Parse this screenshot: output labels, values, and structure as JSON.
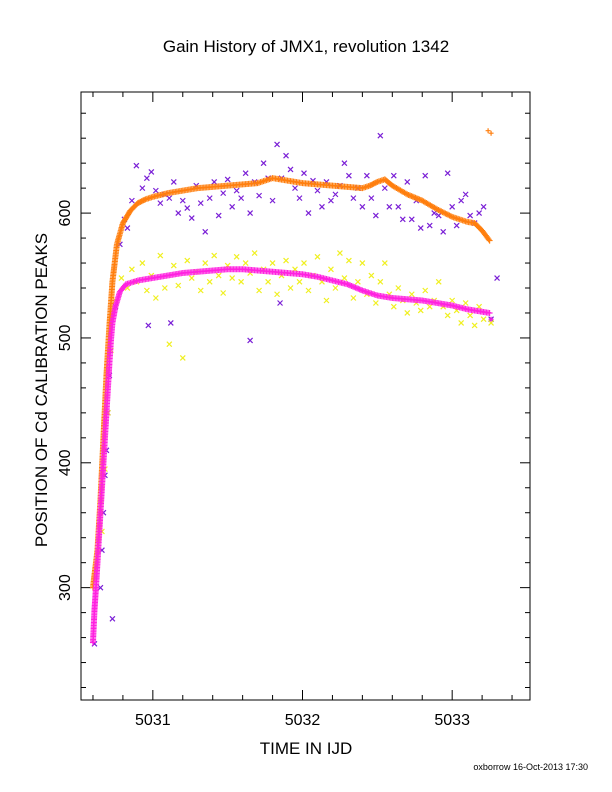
{
  "chart_data": {
    "type": "scatter",
    "title": "Gain History of JMX1, revolution 1342",
    "xlabel": "TIME IN IJD",
    "ylabel": "POSITION OF Cd CALIBRATION PEAKS",
    "footer": "oxborrow 16-Oct-2013 17:30",
    "xlim": [
      5030.52,
      5033.52
    ],
    "ylim": [
      210,
      697
    ],
    "xticks": [
      5031,
      5032,
      5033
    ],
    "xtick_labels": [
      "5031",
      "5032",
      "5033"
    ],
    "yticks": [
      300,
      400,
      500,
      600
    ],
    "ytick_labels": [
      "300",
      "400",
      "500",
      "600"
    ],
    "grid": false,
    "legend": "none",
    "series": [
      {
        "marker": "x",
        "color": "#7a1fd6",
        "points": [
          [
            5030.61,
            255
          ],
          [
            5030.65,
            300
          ],
          [
            5030.66,
            330
          ],
          [
            5030.67,
            360
          ],
          [
            5030.68,
            390
          ],
          [
            5030.69,
            410
          ],
          [
            5030.7,
            440
          ],
          [
            5030.71,
            470
          ],
          [
            5030.73,
            275
          ],
          [
            5030.75,
            525
          ],
          [
            5030.78,
            575
          ],
          [
            5030.81,
            595
          ],
          [
            5030.83,
            588
          ],
          [
            5030.86,
            610
          ],
          [
            5030.89,
            638
          ],
          [
            5030.93,
            620
          ],
          [
            5030.96,
            628
          ],
          [
            5030.99,
            633
          ],
          [
            5031.02,
            618
          ],
          [
            5031.05,
            608
          ],
          [
            5031.08,
            615
          ],
          [
            5031.11,
            612
          ],
          [
            5031.14,
            625
          ],
          [
            5031.17,
            600
          ],
          [
            5031.2,
            610
          ],
          [
            5031.23,
            604
          ],
          [
            5031.26,
            596
          ],
          [
            5031.29,
            622
          ],
          [
            5031.32,
            608
          ],
          [
            5031.35,
            585
          ],
          [
            5031.38,
            612
          ],
          [
            5031.41,
            625
          ],
          [
            5031.44,
            598
          ],
          [
            5031.47,
            616
          ],
          [
            5031.5,
            627
          ],
          [
            5031.53,
            605
          ],
          [
            5031.56,
            618
          ],
          [
            5031.59,
            612
          ],
          [
            5031.62,
            632
          ],
          [
            5031.65,
            600
          ],
          [
            5031.68,
            625
          ],
          [
            5031.71,
            614
          ],
          [
            5031.74,
            640
          ],
          [
            5031.77,
            628
          ],
          [
            5031.8,
            610
          ],
          [
            5031.83,
            655
          ],
          [
            5031.86,
            628
          ],
          [
            5031.89,
            646
          ],
          [
            5031.92,
            635
          ],
          [
            5031.95,
            620
          ],
          [
            5031.98,
            612
          ],
          [
            5032.01,
            632
          ],
          [
            5032.04,
            600
          ],
          [
            5032.07,
            626
          ],
          [
            5032.1,
            618
          ],
          [
            5032.13,
            605
          ],
          [
            5032.16,
            625
          ],
          [
            5032.19,
            610
          ],
          [
            5032.22,
            615
          ],
          [
            5032.25,
            622
          ],
          [
            5032.28,
            640
          ],
          [
            5032.31,
            630
          ],
          [
            5032.34,
            612
          ],
          [
            5032.37,
            620
          ],
          [
            5032.4,
            605
          ],
          [
            5032.43,
            630
          ],
          [
            5032.46,
            612
          ],
          [
            5032.49,
            598
          ],
          [
            5032.52,
            662
          ],
          [
            5032.55,
            620
          ],
          [
            5032.58,
            605
          ],
          [
            5032.61,
            630
          ],
          [
            5032.64,
            605
          ],
          [
            5032.67,
            595
          ],
          [
            5032.7,
            625
          ],
          [
            5032.73,
            595
          ],
          [
            5032.76,
            610
          ],
          [
            5032.79,
            588
          ],
          [
            5032.82,
            630
          ],
          [
            5032.85,
            590
          ],
          [
            5032.88,
            600
          ],
          [
            5032.91,
            598
          ],
          [
            5032.94,
            585
          ],
          [
            5032.97,
            632
          ],
          [
            5033.0,
            605
          ],
          [
            5033.03,
            590
          ],
          [
            5033.06,
            610
          ],
          [
            5033.09,
            615
          ],
          [
            5033.12,
            598
          ],
          [
            5033.15,
            592
          ],
          [
            5033.18,
            600
          ],
          [
            5033.21,
            605
          ],
          [
            5033.26,
            515
          ],
          [
            5033.3,
            548
          ],
          [
            5030.97,
            510
          ],
          [
            5031.12,
            512
          ],
          [
            5031.65,
            498
          ],
          [
            5031.85,
            528
          ]
        ]
      },
      {
        "marker": "x",
        "color": "#f0f020",
        "points": [
          [
            5030.66,
            345
          ],
          [
            5030.68,
            395
          ],
          [
            5030.7,
            440
          ],
          [
            5030.72,
            490
          ],
          [
            5030.75,
            530
          ],
          [
            5030.79,
            548
          ],
          [
            5030.83,
            540
          ],
          [
            5030.86,
            555
          ],
          [
            5030.89,
            545
          ],
          [
            5030.93,
            560
          ],
          [
            5030.96,
            538
          ],
          [
            5030.99,
            550
          ],
          [
            5031.02,
            532
          ],
          [
            5031.05,
            566
          ],
          [
            5031.08,
            540
          ],
          [
            5031.11,
            495
          ],
          [
            5031.14,
            558
          ],
          [
            5031.17,
            542
          ],
          [
            5031.2,
            484
          ],
          [
            5031.23,
            562
          ],
          [
            5031.26,
            548
          ],
          [
            5031.29,
            553
          ],
          [
            5031.32,
            538
          ],
          [
            5031.35,
            560
          ],
          [
            5031.38,
            545
          ],
          [
            5031.41,
            566
          ],
          [
            5031.44,
            550
          ],
          [
            5031.47,
            536
          ],
          [
            5031.5,
            558
          ],
          [
            5031.53,
            548
          ],
          [
            5031.56,
            565
          ],
          [
            5031.59,
            545
          ],
          [
            5031.62,
            560
          ],
          [
            5031.65,
            552
          ],
          [
            5031.68,
            568
          ],
          [
            5031.71,
            538
          ],
          [
            5031.74,
            555
          ],
          [
            5031.77,
            545
          ],
          [
            5031.8,
            560
          ],
          [
            5031.83,
            535
          ],
          [
            5031.86,
            550
          ],
          [
            5031.89,
            562
          ],
          [
            5031.92,
            540
          ],
          [
            5031.95,
            555
          ],
          [
            5031.98,
            545
          ],
          [
            5032.01,
            560
          ],
          [
            5032.04,
            538
          ],
          [
            5032.07,
            550
          ],
          [
            5032.1,
            565
          ],
          [
            5032.13,
            545
          ],
          [
            5032.16,
            530
          ],
          [
            5032.19,
            555
          ],
          [
            5032.22,
            540
          ],
          [
            5032.25,
            568
          ],
          [
            5032.28,
            548
          ],
          [
            5032.31,
            562
          ],
          [
            5032.34,
            532
          ],
          [
            5032.37,
            545
          ],
          [
            5032.4,
            560
          ],
          [
            5032.43,
            535
          ],
          [
            5032.46,
            550
          ],
          [
            5032.49,
            528
          ],
          [
            5032.52,
            545
          ],
          [
            5032.55,
            560
          ],
          [
            5032.58,
            535
          ],
          [
            5032.61,
            525
          ],
          [
            5032.64,
            540
          ],
          [
            5032.67,
            530
          ],
          [
            5032.7,
            520
          ],
          [
            5032.73,
            535
          ],
          [
            5032.76,
            528
          ],
          [
            5032.79,
            522
          ],
          [
            5032.82,
            538
          ],
          [
            5032.85,
            525
          ],
          [
            5032.88,
            530
          ],
          [
            5032.91,
            545
          ],
          [
            5032.94,
            525
          ],
          [
            5032.97,
            518
          ],
          [
            5033.0,
            530
          ],
          [
            5033.03,
            522
          ],
          [
            5033.06,
            512
          ],
          [
            5033.09,
            528
          ],
          [
            5033.12,
            518
          ],
          [
            5033.15,
            510
          ],
          [
            5033.18,
            525
          ],
          [
            5033.21,
            515
          ],
          [
            5033.26,
            512
          ]
        ]
      },
      {
        "marker": "+",
        "color": "#ff7f0e",
        "dense": true,
        "points": [
          [
            5030.6,
            300
          ],
          [
            5030.63,
            330
          ],
          [
            5030.65,
            370
          ],
          [
            5030.67,
            420
          ],
          [
            5030.69,
            470
          ],
          [
            5030.71,
            510
          ],
          [
            5030.73,
            545
          ],
          [
            5030.76,
            575
          ],
          [
            5030.8,
            592
          ],
          [
            5030.85,
            602
          ],
          [
            5030.9,
            608
          ],
          [
            5030.95,
            611
          ],
          [
            5031.0,
            613
          ],
          [
            5031.1,
            616
          ],
          [
            5031.2,
            618
          ],
          [
            5031.3,
            620
          ],
          [
            5031.4,
            621
          ],
          [
            5031.5,
            622
          ],
          [
            5031.6,
            623
          ],
          [
            5031.7,
            624
          ],
          [
            5031.8,
            628
          ],
          [
            5031.9,
            626
          ],
          [
            5032.0,
            624
          ],
          [
            5032.1,
            623
          ],
          [
            5032.2,
            622
          ],
          [
            5032.3,
            621
          ],
          [
            5032.4,
            620
          ],
          [
            5032.45,
            622
          ],
          [
            5032.5,
            625
          ],
          [
            5032.55,
            627
          ],
          [
            5032.6,
            622
          ],
          [
            5032.7,
            615
          ],
          [
            5032.8,
            610
          ],
          [
            5032.9,
            603
          ],
          [
            5033.0,
            597
          ],
          [
            5033.1,
            593
          ],
          [
            5033.15,
            592
          ],
          [
            5033.2,
            586
          ],
          [
            5033.25,
            578
          ]
        ]
      },
      {
        "marker": "+",
        "color": "#ff7f0e",
        "points": [
          [
            5033.24,
            666
          ],
          [
            5033.26,
            664
          ]
        ]
      },
      {
        "marker": "+",
        "color": "#ff22e0",
        "dense": true,
        "points": [
          [
            5030.6,
            256
          ],
          [
            5030.61,
            282
          ],
          [
            5030.62,
            300
          ],
          [
            5030.63,
            320
          ],
          [
            5030.64,
            340
          ],
          [
            5030.65,
            360
          ],
          [
            5030.66,
            380
          ],
          [
            5030.67,
            400
          ],
          [
            5030.68,
            420
          ],
          [
            5030.69,
            440
          ],
          [
            5030.7,
            460
          ],
          [
            5030.71,
            480
          ],
          [
            5030.72,
            498
          ],
          [
            5030.73,
            512
          ],
          [
            5030.75,
            525
          ],
          [
            5030.78,
            537
          ],
          [
            5030.82,
            543
          ],
          [
            5030.9,
            546
          ],
          [
            5031.0,
            548
          ],
          [
            5031.1,
            550
          ],
          [
            5031.2,
            552
          ],
          [
            5031.3,
            553
          ],
          [
            5031.4,
            554
          ],
          [
            5031.5,
            555
          ],
          [
            5031.6,
            555
          ],
          [
            5031.7,
            554
          ],
          [
            5031.8,
            553
          ],
          [
            5031.9,
            552
          ],
          [
            5032.0,
            551
          ],
          [
            5032.1,
            549
          ],
          [
            5032.2,
            546
          ],
          [
            5032.3,
            543
          ],
          [
            5032.4,
            538
          ],
          [
            5032.5,
            534
          ],
          [
            5032.6,
            532
          ],
          [
            5032.7,
            531
          ],
          [
            5032.8,
            530
          ],
          [
            5032.9,
            528
          ],
          [
            5033.0,
            526
          ],
          [
            5033.1,
            523
          ],
          [
            5033.15,
            522
          ],
          [
            5033.2,
            521
          ],
          [
            5033.25,
            520
          ]
        ]
      },
      {
        "marker": "+",
        "color": "#ff22e0",
        "points": [
          [
            5033.26,
            515
          ]
        ]
      }
    ]
  }
}
